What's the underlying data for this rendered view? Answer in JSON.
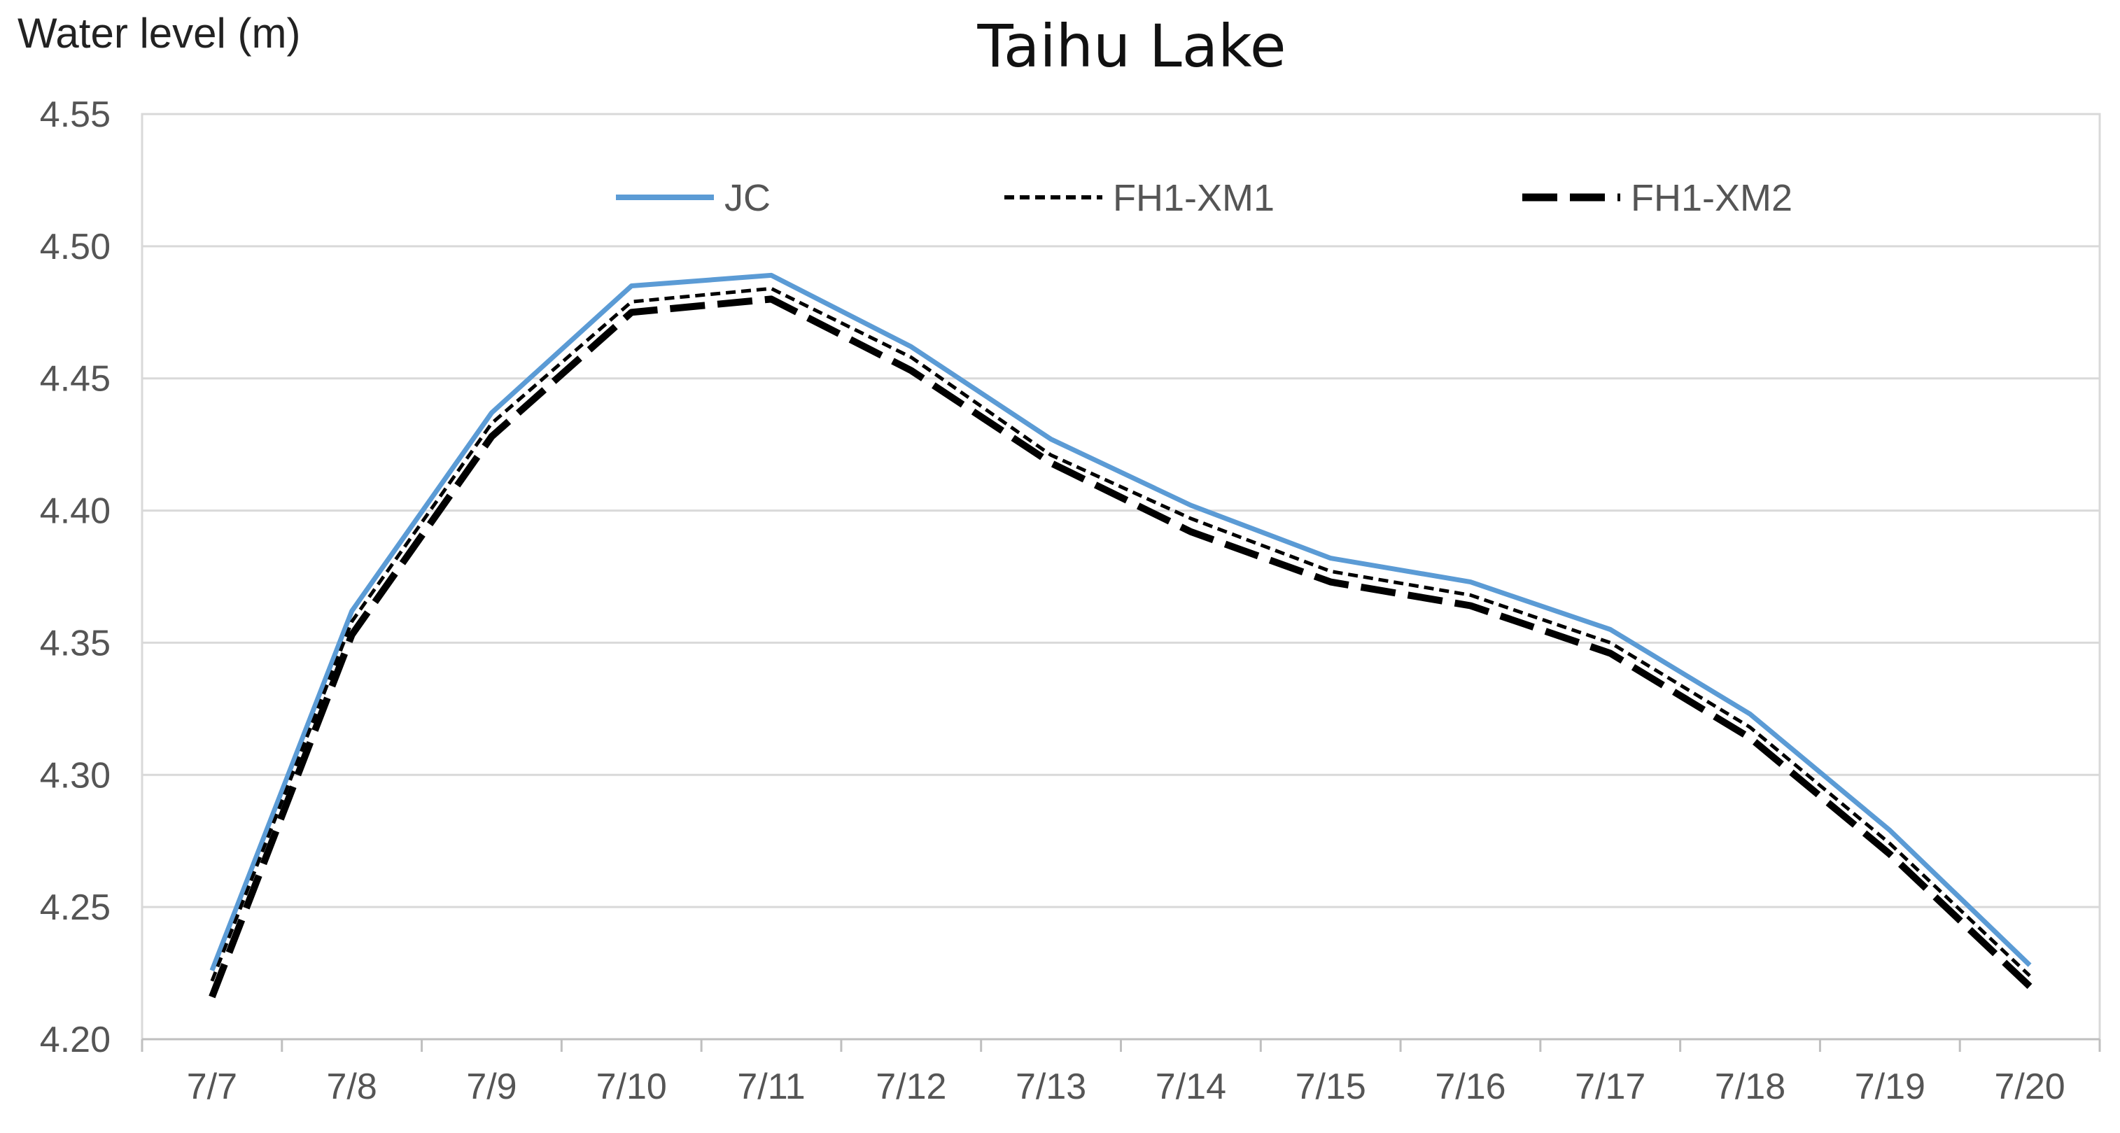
{
  "chart_data": {
    "type": "line",
    "title": "Taihu Lake",
    "ylabel": "Water level (m)",
    "xlabel": "",
    "categories": [
      "7/7",
      "7/8",
      "7/9",
      "7/10",
      "7/11",
      "7/12",
      "7/13",
      "7/14",
      "7/15",
      "7/16",
      "7/17",
      "7/18",
      "7/19",
      "7/20"
    ],
    "ylim": [
      4.2,
      4.55
    ],
    "yticks": [
      "4.20",
      "4.25",
      "4.30",
      "4.35",
      "4.40",
      "4.45",
      "4.50",
      "4.55"
    ],
    "grid": true,
    "legend_position": "top-center",
    "series": [
      {
        "name": "JC",
        "color": "#5b9bd5",
        "style": "solid",
        "values": [
          4.226,
          4.362,
          4.437,
          4.485,
          4.489,
          4.462,
          4.427,
          4.402,
          4.382,
          4.373,
          4.355,
          4.323,
          4.279,
          4.228
        ]
      },
      {
        "name": "FH1-XM1",
        "color": "#000000",
        "style": "short-dash",
        "values": [
          4.222,
          4.358,
          4.433,
          4.479,
          4.484,
          4.458,
          4.421,
          4.397,
          4.377,
          4.368,
          4.35,
          4.318,
          4.274,
          4.224
        ]
      },
      {
        "name": "FH1-XM2",
        "color": "#000000",
        "style": "long-dash",
        "values": [
          4.216,
          4.353,
          4.428,
          4.475,
          4.48,
          4.453,
          4.418,
          4.392,
          4.373,
          4.364,
          4.346,
          4.314,
          4.27,
          4.22
        ]
      }
    ]
  }
}
